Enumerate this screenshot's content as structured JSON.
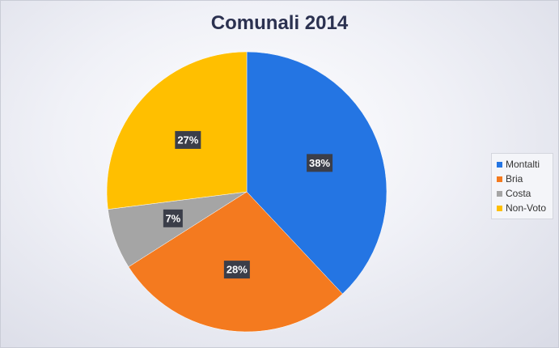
{
  "chart_data": {
    "type": "pie",
    "title": "Comunali 2014",
    "categories": [
      "Montalti",
      "Bria",
      "Costa",
      "Non-Voto"
    ],
    "values": [
      38,
      28,
      7,
      27
    ],
    "labels": [
      "38%",
      "28%",
      "7%",
      "27%"
    ],
    "colors": [
      "#2475e3",
      "#f47a1f",
      "#a5a5a5",
      "#ffbf00"
    ],
    "start_angle_deg": 0,
    "direction": "clockwise",
    "legend_position": "right"
  }
}
